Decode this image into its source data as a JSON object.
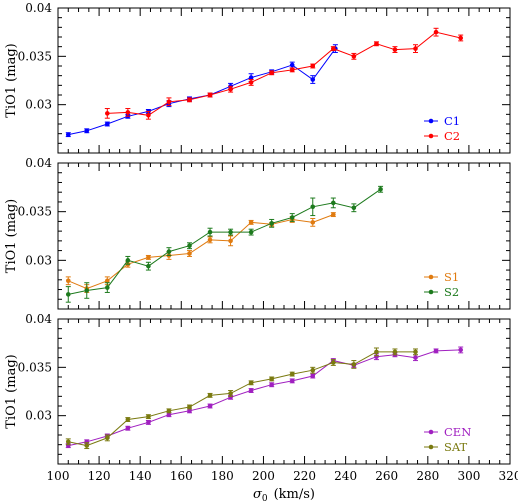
{
  "chart_data": [
    {
      "type": "line",
      "ylabel": "TiO1 (mag)",
      "xlim": [
        100,
        320
      ],
      "ylim": [
        0.025,
        0.04
      ],
      "yticks": [
        "0.03",
        "0.035",
        "0.04"
      ],
      "legend_position": "bottom-right",
      "series": [
        {
          "name": "C1",
          "color": "#0000ff",
          "x": [
            105,
            114,
            124,
            134,
            144,
            154,
            164,
            174,
            184,
            194,
            204,
            214,
            224,
            235
          ],
          "y": [
            0.0269,
            0.0273,
            0.028,
            0.0288,
            0.0293,
            0.0301,
            0.0306,
            0.031,
            0.0319,
            0.0328,
            0.0334,
            0.0341,
            0.0326,
            0.0358
          ],
          "err": [
            0.0002,
            0.0002,
            0.0002,
            0.0002,
            0.0002,
            0.0003,
            0.0002,
            0.0002,
            0.0003,
            0.0004,
            0.0002,
            0.0003,
            0.0004,
            0.0004
          ]
        },
        {
          "name": "C2",
          "color": "#ff0000",
          "x": [
            124,
            134,
            144,
            154,
            164,
            174,
            184,
            194,
            204,
            214,
            224,
            234,
            244,
            255,
            264,
            274,
            284,
            296
          ],
          "y": [
            0.0291,
            0.0292,
            0.0289,
            0.0303,
            0.0305,
            0.031,
            0.0316,
            0.0323,
            0.0333,
            0.0336,
            0.034,
            0.0358,
            0.035,
            0.0363,
            0.0357,
            0.0358,
            0.0375,
            0.0369
          ],
          "err": [
            0.0005,
            0.0004,
            0.0004,
            0.0004,
            0.0002,
            0.0002,
            0.0003,
            0.0003,
            0.0002,
            0.0002,
            0.0002,
            0.0002,
            0.0003,
            0.0002,
            0.0003,
            0.0004,
            0.0004,
            0.0003
          ]
        }
      ]
    },
    {
      "type": "line",
      "ylabel": "TiO1 (mag)",
      "xlim": [
        100,
        320
      ],
      "ylim": [
        0.025,
        0.04
      ],
      "yticks": [
        "0.03",
        "0.035",
        "0.04"
      ],
      "legend_position": "bottom-right",
      "series": [
        {
          "name": "S1",
          "color": "#e07b10",
          "x": [
            105,
            114,
            124,
            134,
            144,
            154,
            164,
            174,
            184,
            194,
            204,
            214,
            224,
            234
          ],
          "y": [
            0.0279,
            0.0271,
            0.0279,
            0.0296,
            0.0303,
            0.0305,
            0.0307,
            0.0321,
            0.032,
            0.0339,
            0.0337,
            0.0342,
            0.0339,
            0.0347
          ],
          "err": [
            0.0004,
            0.0004,
            0.0004,
            0.0003,
            0.0002,
            0.0004,
            0.0003,
            0.0003,
            0.0005,
            0.0002,
            0.0002,
            0.0003,
            0.0004,
            0.0002
          ]
        },
        {
          "name": "S2",
          "color": "#1d7a1d",
          "x": [
            105,
            114,
            124,
            134,
            144,
            154,
            164,
            174,
            184,
            194,
            204,
            214,
            224,
            234,
            244,
            257
          ],
          "y": [
            0.0265,
            0.0269,
            0.0272,
            0.03,
            0.0294,
            0.0309,
            0.0315,
            0.0329,
            0.0329,
            0.0329,
            0.0338,
            0.0344,
            0.0355,
            0.0359,
            0.0354,
            0.0373
          ],
          "err": [
            0.0008,
            0.0008,
            0.0005,
            0.0004,
            0.0004,
            0.0004,
            0.0003,
            0.0004,
            0.0003,
            0.0003,
            0.0004,
            0.0004,
            0.0009,
            0.0005,
            0.0004,
            0.0003
          ]
        }
      ]
    },
    {
      "type": "line",
      "ylabel": "TiO1 (mag)",
      "xlabel": "σ",
      "xlabel_subscript": "0",
      "xlabel_units": "(km/s)",
      "xlim": [
        100,
        320
      ],
      "ylim": [
        0.025,
        0.04
      ],
      "yticks": [
        "0.03",
        "0.035",
        "0.04"
      ],
      "xticks": [
        100,
        120,
        140,
        160,
        180,
        200,
        220,
        240,
        260,
        280,
        300,
        320
      ],
      "legend_position": "bottom-right",
      "series": [
        {
          "name": "CEN",
          "color": "#a020c0",
          "x": [
            105,
            114,
            124,
            134,
            144,
            154,
            164,
            174,
            184,
            194,
            204,
            214,
            224,
            234,
            244,
            255,
            264,
            274,
            284,
            296
          ],
          "y": [
            0.0269,
            0.0273,
            0.0279,
            0.0287,
            0.0293,
            0.0301,
            0.0305,
            0.031,
            0.0319,
            0.0326,
            0.0332,
            0.0336,
            0.0341,
            0.0357,
            0.0352,
            0.0361,
            0.0363,
            0.036,
            0.0367,
            0.0368
          ],
          "err": [
            0.0002,
            0.0002,
            0.0002,
            0.0002,
            0.0002,
            0.0002,
            0.0002,
            0.0002,
            0.0002,
            0.0002,
            0.0002,
            0.0002,
            0.0002,
            0.0002,
            0.0002,
            0.0003,
            0.0002,
            0.0003,
            0.0002,
            0.0003
          ]
        },
        {
          "name": "SAT",
          "color": "#7a7a10",
          "x": [
            105,
            114,
            124,
            134,
            144,
            154,
            164,
            174,
            184,
            194,
            204,
            214,
            224,
            234,
            244,
            255,
            264,
            274
          ],
          "y": [
            0.0273,
            0.0269,
            0.0277,
            0.0296,
            0.0299,
            0.0305,
            0.0309,
            0.0321,
            0.0323,
            0.0334,
            0.0338,
            0.0343,
            0.0347,
            0.0355,
            0.0353,
            0.0366,
            0.0366,
            0.0366
          ],
          "err": [
            0.0003,
            0.0003,
            0.0003,
            0.0002,
            0.0002,
            0.0002,
            0.0002,
            0.0002,
            0.0003,
            0.0002,
            0.0002,
            0.0002,
            0.0003,
            0.0003,
            0.0004,
            0.0004,
            0.0003,
            0.0003
          ]
        }
      ]
    }
  ]
}
